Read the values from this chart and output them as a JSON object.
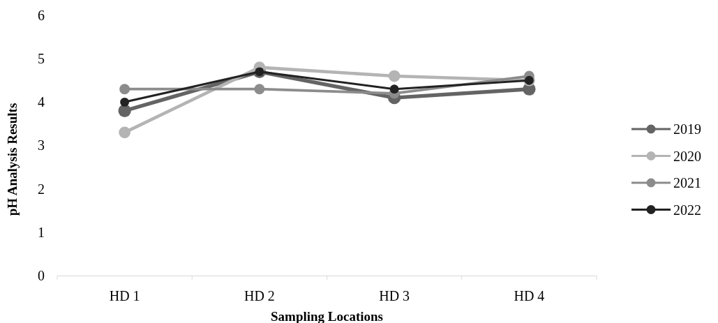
{
  "chart_data": {
    "type": "line",
    "xlabel": "Sampling Locations",
    "ylabel": "pH Analysis Results",
    "categories": [
      "HD 1",
      "HD 2",
      "HD 3",
      "HD 4"
    ],
    "series": [
      {
        "name": "2019",
        "color": "#646464",
        "values": [
          3.8,
          4.7,
          4.1,
          4.3
        ]
      },
      {
        "name": "2020",
        "color": "#b4b4b4",
        "values": [
          3.3,
          4.8,
          4.6,
          4.5
        ]
      },
      {
        "name": "2021",
        "color": "#8c8c8c",
        "values": [
          4.3,
          4.3,
          4.2,
          4.6
        ]
      },
      {
        "name": "2022",
        "color": "#222222",
        "values": [
          4.0,
          4.7,
          4.3,
          4.5
        ]
      }
    ],
    "ylim": [
      0,
      6
    ],
    "yticks": [
      0,
      1,
      2,
      3,
      4,
      5,
      6
    ],
    "grid": false,
    "legend": "right",
    "marker": "circle",
    "line_style": "solid"
  }
}
